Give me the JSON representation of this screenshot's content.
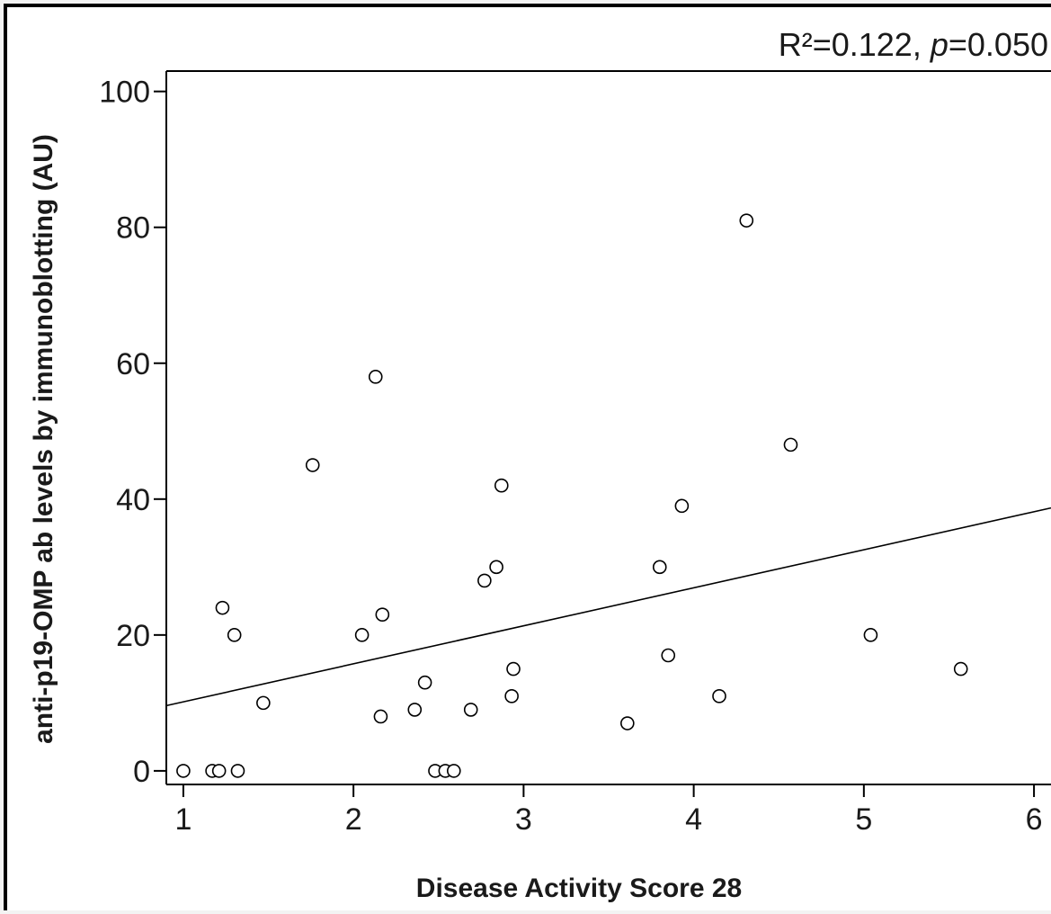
{
  "chart_data": {
    "type": "scatter",
    "title": "",
    "xlabel": "Disease Activity Score 28",
    "ylabel": "anti-p19-OMP ab levels by immunoblotting (AU)",
    "annotation": {
      "r2_text": "R²=0.122, ",
      "p_symbol": "p",
      "p_text": "=0.050"
    },
    "xlim": [
      0.9,
      6.1
    ],
    "ylim": [
      -2,
      103
    ],
    "xticks": [
      1,
      2,
      3,
      4,
      5,
      6
    ],
    "yticks": [
      0,
      20,
      40,
      60,
      80,
      100
    ],
    "grid": false,
    "points": [
      {
        "x": 1.0,
        "y": 0
      },
      {
        "x": 1.17,
        "y": 0
      },
      {
        "x": 1.21,
        "y": 0
      },
      {
        "x": 1.32,
        "y": 0
      },
      {
        "x": 1.23,
        "y": 24
      },
      {
        "x": 1.3,
        "y": 20
      },
      {
        "x": 1.47,
        "y": 10
      },
      {
        "x": 1.76,
        "y": 45
      },
      {
        "x": 2.05,
        "y": 20
      },
      {
        "x": 2.13,
        "y": 58
      },
      {
        "x": 2.17,
        "y": 23
      },
      {
        "x": 2.16,
        "y": 8
      },
      {
        "x": 2.36,
        "y": 9
      },
      {
        "x": 2.42,
        "y": 13
      },
      {
        "x": 2.48,
        "y": 0
      },
      {
        "x": 2.54,
        "y": 0
      },
      {
        "x": 2.59,
        "y": 0
      },
      {
        "x": 2.69,
        "y": 9
      },
      {
        "x": 2.77,
        "y": 28
      },
      {
        "x": 2.84,
        "y": 30
      },
      {
        "x": 2.87,
        "y": 42
      },
      {
        "x": 2.93,
        "y": 11
      },
      {
        "x": 2.94,
        "y": 15
      },
      {
        "x": 3.61,
        "y": 7
      },
      {
        "x": 3.8,
        "y": 30
      },
      {
        "x": 3.85,
        "y": 17
      },
      {
        "x": 3.93,
        "y": 39
      },
      {
        "x": 4.15,
        "y": 11
      },
      {
        "x": 4.31,
        "y": 81
      },
      {
        "x": 4.57,
        "y": 48
      },
      {
        "x": 5.04,
        "y": 20
      },
      {
        "x": 5.57,
        "y": 15
      }
    ],
    "fit_line": {
      "x1": 0.9,
      "y1": 9.6,
      "x2": 6.1,
      "y2": 38.7
    }
  }
}
